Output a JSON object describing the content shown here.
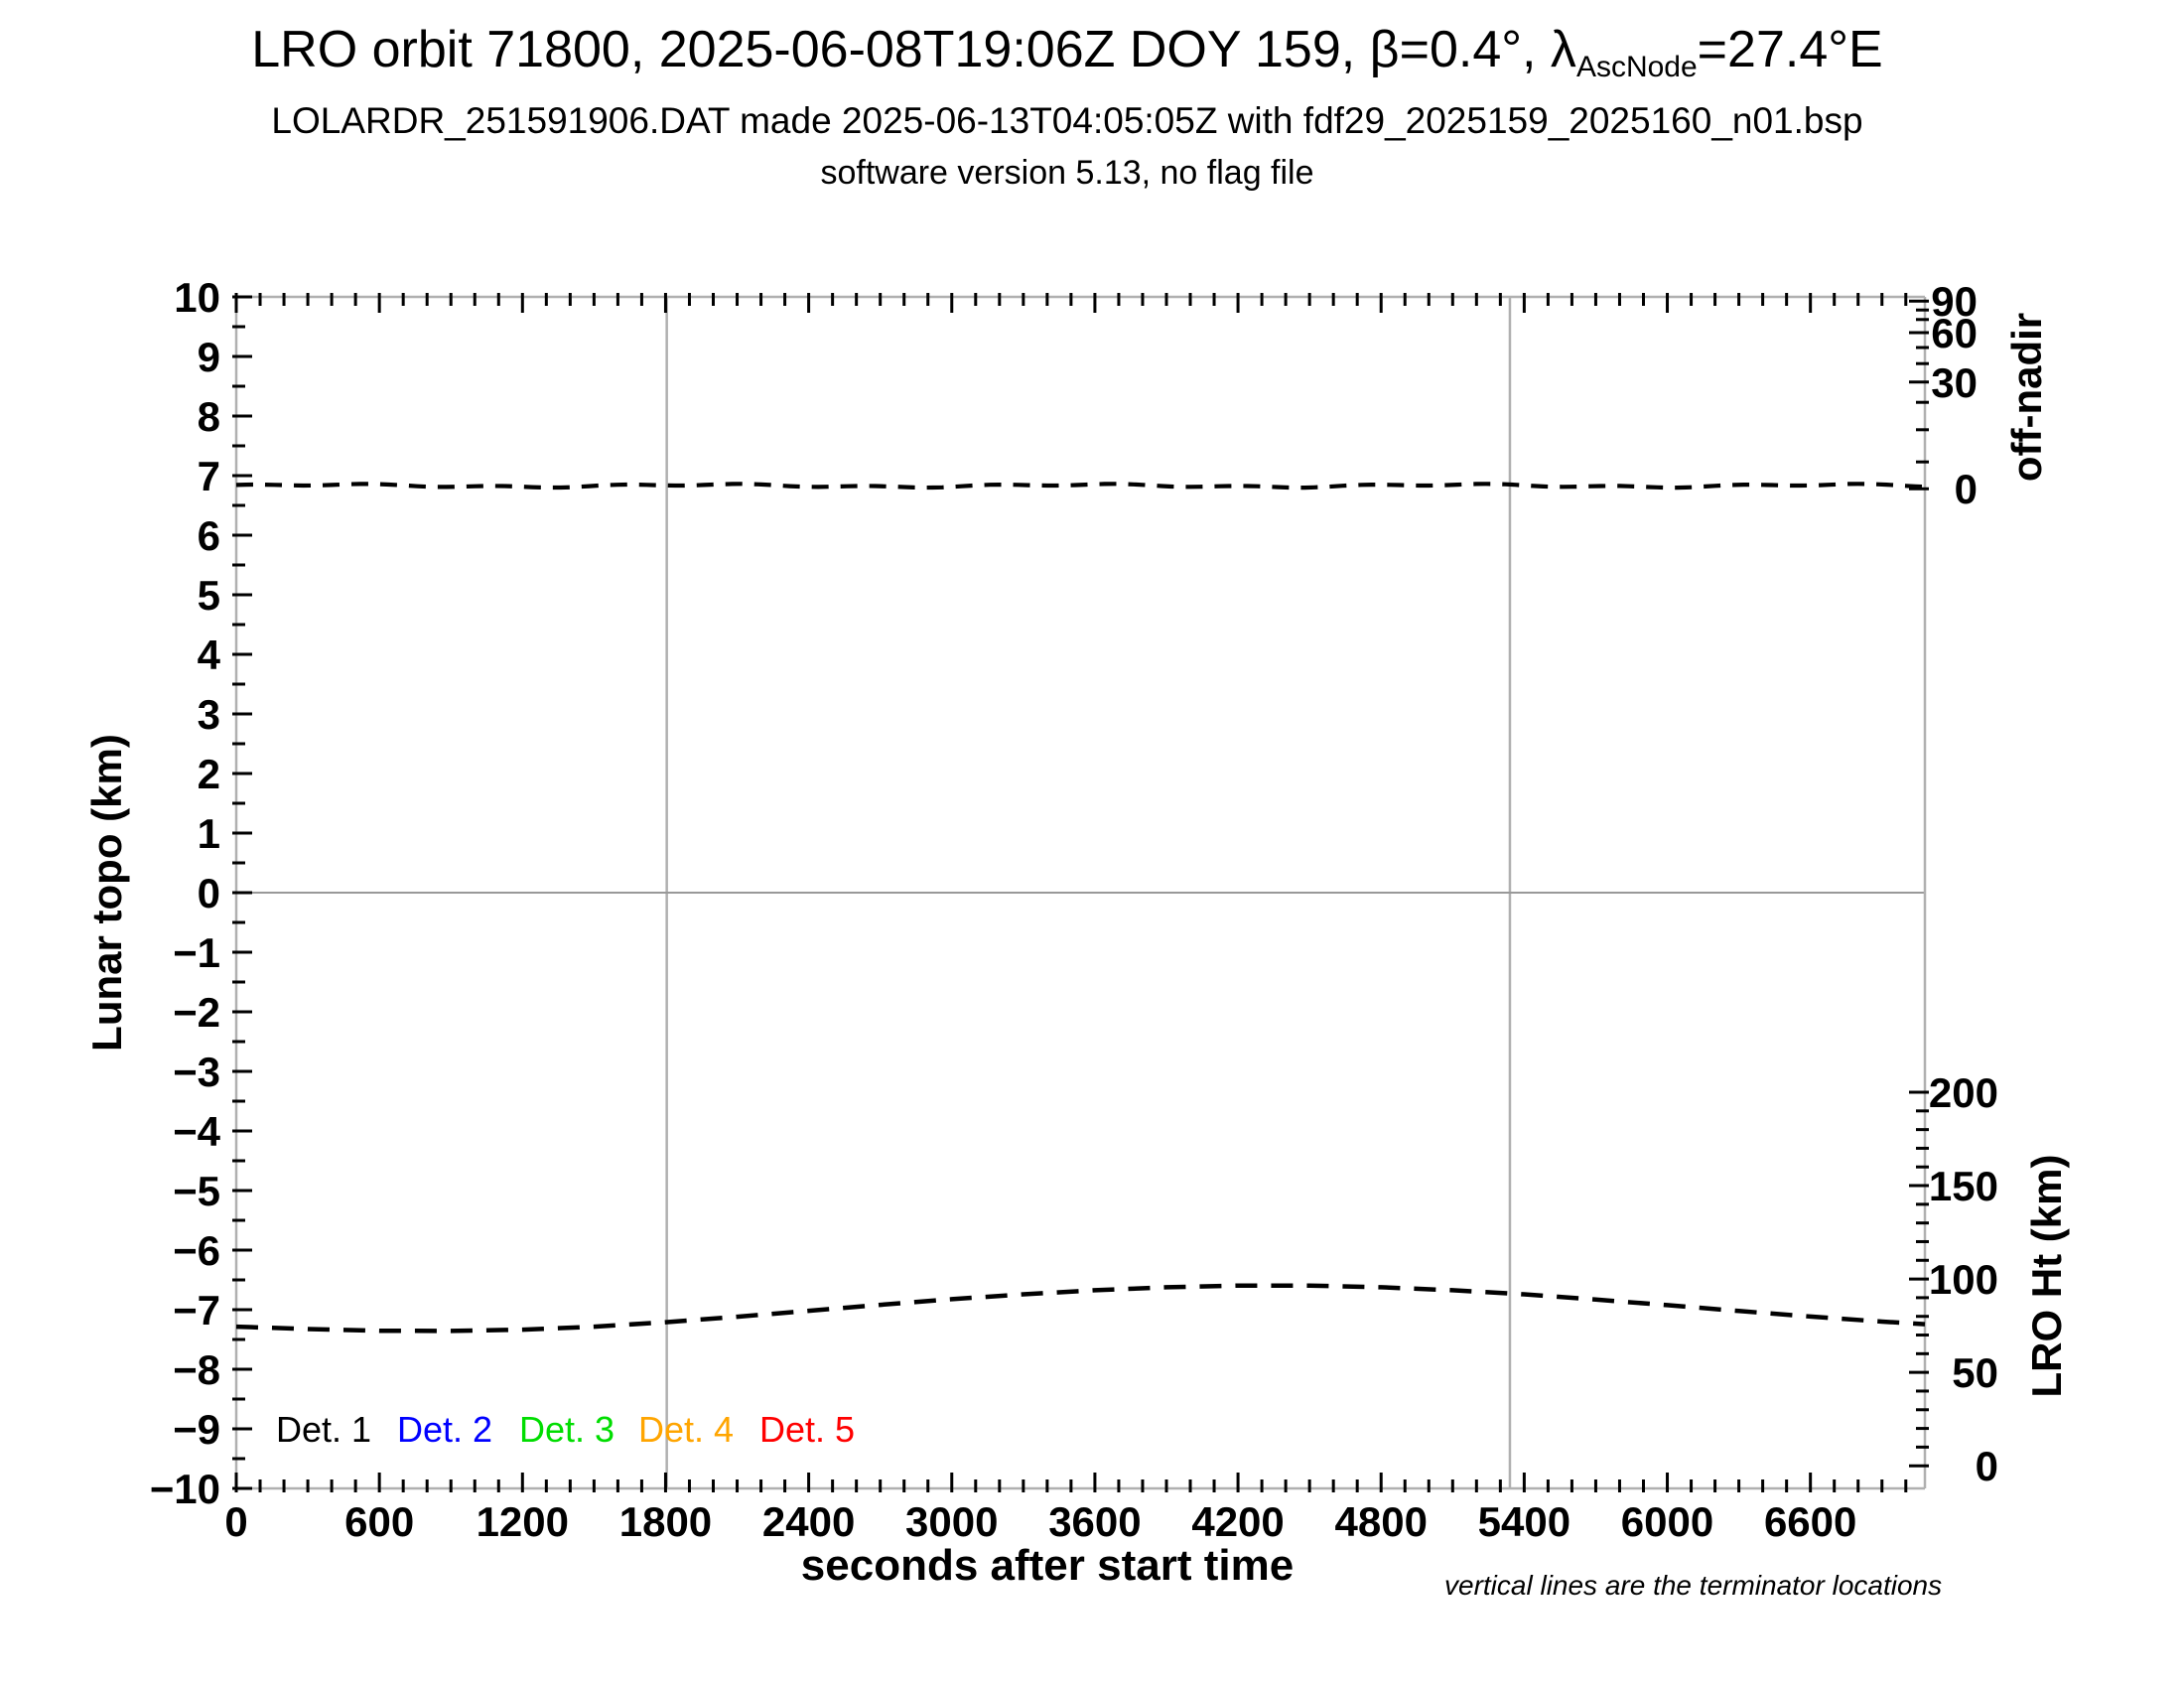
{
  "header": {
    "title_prefix": "LRO orbit 71800, 2025-06-08T19:06Z DOY 159, β=0.4°, λ",
    "title_sub": "AscNode",
    "title_suffix": "=27.4°E",
    "subtitle": "LOLARDR_251591906.DAT made 2025-06-13T04:05:05Z with fdf29_2025159_2025160_n01.bsp",
    "subtitle2": "software version 5.13, no flag file"
  },
  "chart_data": {
    "type": "line",
    "title": "LRO orbit 71800, 2025-06-08T19:06Z DOY 159, β=0.4°, λ_AscNode=27.4°E",
    "xlabel": "seconds after start time",
    "ylabel_left": "Lunar topo (km)",
    "ylabel_right_top": "off-nadir",
    "ylabel_right_bottom": "LRO Ht (km)",
    "note": "vertical lines are the terminator locations",
    "grid": "off",
    "x_axis": {
      "min": 0,
      "max": 7080,
      "major_step": 600,
      "minor_step": 100,
      "tick_values": [
        0,
        600,
        1200,
        1800,
        2400,
        3000,
        3600,
        4200,
        4800,
        5400,
        6000,
        6600
      ],
      "tick_labels": [
        "0",
        "600",
        "1200",
        "1800",
        "2400",
        "3000",
        "3600",
        "4200",
        "4800",
        "5400",
        "6000",
        "6600"
      ]
    },
    "y_axis_left": {
      "min": -10,
      "max": 10,
      "major_step": 1,
      "minor_step": 0.5,
      "tick_values": [
        10,
        9,
        8,
        7,
        6,
        5,
        4,
        3,
        2,
        1,
        0,
        -1,
        -2,
        -3,
        -4,
        -5,
        -6,
        -7,
        -8,
        -9,
        -10
      ],
      "tick_labels": [
        "10",
        "9",
        "8",
        "7",
        "6",
        "5",
        "4",
        "3",
        "2",
        "1",
        "0",
        "−1",
        "−2",
        "−3",
        "−4",
        "−5",
        "−6",
        "−7",
        "−8",
        "−9",
        "−10"
      ]
    },
    "y_axis_offnadir": {
      "unit": "degrees",
      "tick_values": [
        90,
        60,
        30,
        0
      ],
      "tick_labels": [
        "90",
        "60",
        "30",
        "0"
      ],
      "tick_pos_left_units": [
        9.93,
        9.4,
        8.57,
        6.78
      ],
      "minor_tick_pos_left_units": [
        9.78,
        9.62,
        9.15,
        8.88,
        8.23,
        7.77,
        7.23
      ]
    },
    "y_axis_ht": {
      "unit": "km",
      "min": 0,
      "max": 200,
      "major_step": 50,
      "minor_step": 10,
      "tick_values": [
        200,
        150,
        100,
        50,
        0
      ],
      "tick_labels": [
        "200",
        "150",
        "100",
        "50",
        "0"
      ],
      "v_at_0km": -9.62,
      "v_per_km": 0.03135
    },
    "terminator_lines_t": [
      1805,
      5340
    ],
    "zero_line_v": 0,
    "series": [
      {
        "name": "off-nadir angle",
        "axis": "off-nadir",
        "color": "#000000",
        "line_style": "dashed",
        "approx_constant_deg": 1,
        "plotted_left_units": 6.83
      },
      {
        "name": "LRO height",
        "axis": "LRO Ht (km)",
        "color": "#000000",
        "line_style": "dashed",
        "t": [
          0,
          300,
          600,
          900,
          1200,
          1500,
          1800,
          2100,
          2400,
          2700,
          3000,
          3300,
          3600,
          3900,
          4200,
          4500,
          4800,
          5100,
          5400,
          5700,
          6000,
          6300,
          6600,
          6900,
          7080
        ],
        "km": [
          74.5,
          73.2,
          72.3,
          72.2,
          72.9,
          74.5,
          76.9,
          79.8,
          83.0,
          86.2,
          89.2,
          91.8,
          94.0,
          95.6,
          96.5,
          96.5,
          95.6,
          94.0,
          91.8,
          89.0,
          86.0,
          82.9,
          79.9,
          77.2,
          75.8
        ]
      }
    ],
    "legend": {
      "position": "bottom-left-inside",
      "items": [
        {
          "label": "Det. 1",
          "color": "#000000"
        },
        {
          "label": "Det. 2",
          "color": "#0000ff"
        },
        {
          "label": "Det. 3",
          "color": "#00dd00"
        },
        {
          "label": "Det. 4",
          "color": "#ffa500"
        },
        {
          "label": "Det. 5",
          "color": "#ff0000"
        }
      ]
    }
  },
  "colors": {
    "background": "#ffffff",
    "frame": "#b0b0b0",
    "zero_line": "#999999",
    "terminator_line": "#b0b0b0",
    "tick": "#000000",
    "data_line": "#000000"
  }
}
